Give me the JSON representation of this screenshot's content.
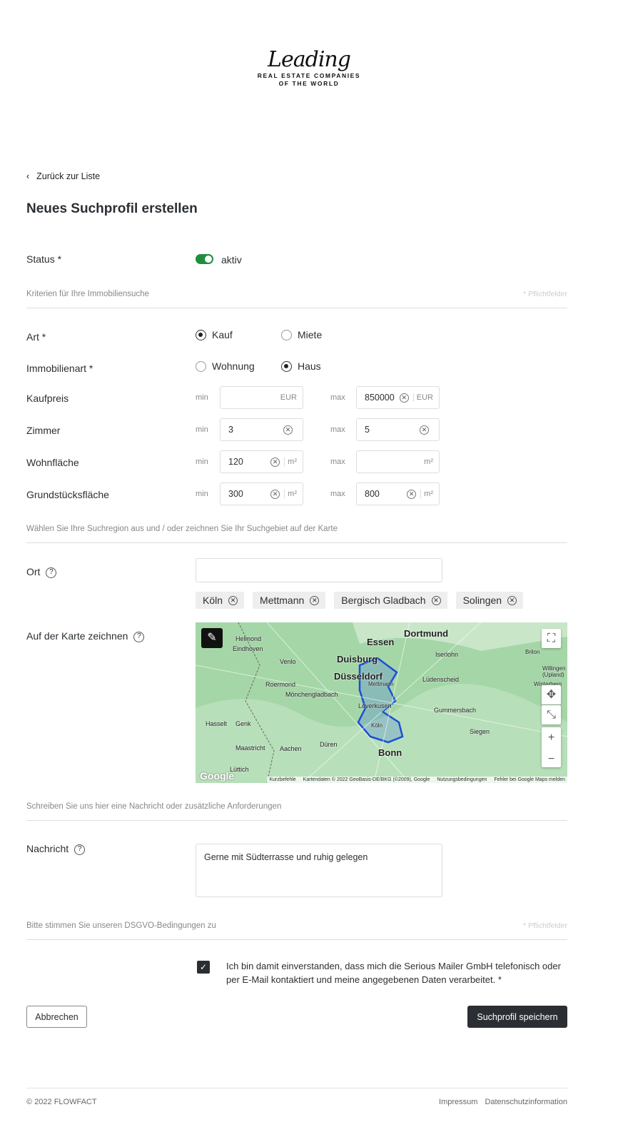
{
  "logo": {
    "script": "Leading",
    "line1": "REAL ESTATE COMPANIES",
    "line2": "OF THE WORLD"
  },
  "back_link": "Zurück zur Liste",
  "title": "Neues Suchprofil erstellen",
  "status": {
    "label": "Status *",
    "value": "aktiv",
    "active": true,
    "color": "#1e8e3e"
  },
  "criteria_section": {
    "text": "Kriterien für Ihre Immobiliensuche",
    "required_note": "* Pflichtfelder"
  },
  "art": {
    "label": "Art *",
    "options": [
      "Kauf",
      "Miete"
    ],
    "selected": "Kauf"
  },
  "immobilienart": {
    "label": "Immobilienart *",
    "options": [
      "Wohnung",
      "Haus"
    ],
    "selected": "Haus"
  },
  "min_label": "min",
  "max_label": "max",
  "ranges": [
    {
      "label": "Kaufpreis",
      "min": "",
      "max": "850000",
      "unit": "EUR"
    },
    {
      "label": "Zimmer",
      "min": "3",
      "max": "5",
      "unit": ""
    },
    {
      "label": "Wohnfläche",
      "min": "120",
      "max": "",
      "unit": "m²"
    },
    {
      "label": "Grundstücksfläche",
      "min": "300",
      "max": "800",
      "unit": "m²"
    }
  ],
  "region_section": {
    "text": "Wählen Sie Ihre Suchregion aus und / oder zeichnen Sie Ihr Suchgebiet auf der Karte"
  },
  "ort": {
    "label": "Ort",
    "value": "",
    "chips": [
      "Köln",
      "Mettmann",
      "Bergisch Gladbach",
      "Solingen"
    ]
  },
  "map": {
    "label": "Auf der Karte zeichnen",
    "cities": [
      "Dortmund",
      "Essen",
      "Duisburg",
      "Düsseldorf",
      "Iserlohn",
      "Lüdenscheid",
      "Helmond",
      "Eindhoven",
      "Venlo",
      "Roermond",
      "Mönchengladbach",
      "Leverkusen",
      "Gummersbach",
      "Hasselt",
      "Genk",
      "Maastricht",
      "Aachen",
      "Düren",
      "Bonn",
      "Siegen",
      "Lüttich",
      "Brilon",
      "Winterberg",
      "Willingen (Upland)",
      "Mettmann",
      "Köln"
    ],
    "attribution": [
      "Kurzbefehle",
      "Kartendaten © 2022 GeoBasis-DE/BKG (©2009), Google",
      "Nutzungsbedingungen",
      "Fehler bei Google Maps melden"
    ],
    "google": "Google"
  },
  "message_section": {
    "text": "Schreiben Sie uns hier eine Nachricht oder zusätzliche Anforderungen"
  },
  "nachricht": {
    "label": "Nachricht",
    "value": "Gerne mit Südterrasse und ruhig gelegen"
  },
  "dsgvo_section": {
    "text": "Bitte stimmen Sie unseren DSGVO-Bedingungen zu",
    "required_note": "* Pflichtfelder"
  },
  "consent": {
    "text": "Ich bin damit einverstanden, dass mich die Serious Mailer GmbH telefonisch oder per E-Mail kontaktiert und meine angegebenen Daten verarbeitet. *",
    "checked": true
  },
  "buttons": {
    "cancel": "Abbrechen",
    "save": "Suchprofil speichern"
  },
  "footer": {
    "copyright": "© 2022 FLOWFACT",
    "links": [
      "Impressum",
      "Datenschutzinformation"
    ]
  }
}
